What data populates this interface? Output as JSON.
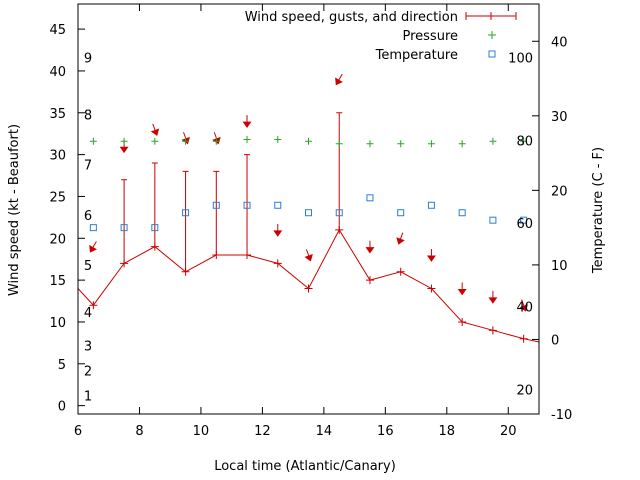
{
  "chart_data": {
    "type": "line",
    "xlabel": "Local time (Atlantic/Canary)",
    "ylabel": "Wind speed (kt - Beaufort)",
    "y2label": "Temperature (C - F)",
    "xlim": [
      6,
      21
    ],
    "ylim": [
      -1,
      48
    ],
    "y2lim": [
      -10,
      45
    ],
    "x_ticks": [
      6,
      8,
      10,
      12,
      14,
      16,
      18,
      20
    ],
    "y_ticks": [
      0,
      5,
      10,
      15,
      20,
      25,
      30,
      35,
      40,
      45
    ],
    "y2_ticks": [
      -10,
      0,
      10,
      20,
      30,
      40
    ],
    "beaufort_labels": [
      {
        "label": "1",
        "y": 1.2
      },
      {
        "label": "2",
        "y": 4.2
      },
      {
        "label": "3",
        "y": 7.2
      },
      {
        "label": "4",
        "y": 11.2
      },
      {
        "label": "5",
        "y": 16.8
      },
      {
        "label": "6",
        "y": 22.8
      },
      {
        "label": "7",
        "y": 28.8
      },
      {
        "label": "8",
        "y": 34.8
      },
      {
        "label": "9",
        "y": 41.6
      }
    ],
    "fahrenheit_labels": [
      {
        "label": "20",
        "temp": -6.7
      },
      {
        "label": "40",
        "temp": 4.4
      },
      {
        "label": "60",
        "temp": 15.6
      },
      {
        "label": "80",
        "temp": 26.7
      },
      {
        "label": "100",
        "temp": 37.8
      }
    ],
    "series": [
      {
        "name": "Wind speed, gusts, and direction",
        "color": "#cc0000",
        "x": [
          6.0,
          6.5,
          7.5,
          8.5,
          9.5,
          10.5,
          11.5,
          12.5,
          13.5,
          14.5,
          15.5,
          16.5,
          17.5,
          18.5,
          19.5,
          20.5,
          21.0
        ],
        "values": [
          14,
          12,
          17,
          19,
          16,
          18,
          18,
          17,
          14,
          21,
          15,
          16,
          14,
          10,
          9,
          8,
          7.6
        ],
        "gust_x": [
          7.5,
          8.5,
          9.5,
          10.5,
          11.5,
          14.5
        ],
        "gusts": [
          27,
          29,
          28,
          28,
          30,
          35
        ],
        "direction_points": [
          {
            "x": 6.5,
            "y": 19,
            "from": 30
          },
          {
            "x": 7.5,
            "y": 31,
            "from": 0
          },
          {
            "x": 8.5,
            "y": 33,
            "from": 340
          },
          {
            "x": 9.5,
            "y": 32,
            "from": 340
          },
          {
            "x": 10.5,
            "y": 32,
            "from": 340
          },
          {
            "x": 11.5,
            "y": 34,
            "from": 0
          },
          {
            "x": 12.5,
            "y": 21,
            "from": 0
          },
          {
            "x": 13.5,
            "y": 18,
            "from": 340
          },
          {
            "x": 14.5,
            "y": 39,
            "from": 30
          },
          {
            "x": 15.5,
            "y": 19,
            "from": 0
          },
          {
            "x": 16.5,
            "y": 20,
            "from": 20
          },
          {
            "x": 17.5,
            "y": 18,
            "from": 0
          },
          {
            "x": 18.5,
            "y": 14,
            "from": 0
          },
          {
            "x": 19.5,
            "y": 13,
            "from": 0
          },
          {
            "x": 20.5,
            "y": 12,
            "from": 340
          }
        ]
      },
      {
        "name": "Pressure",
        "color": "#22aa22",
        "x": [
          6.5,
          7.5,
          8.5,
          9.5,
          10.5,
          11.5,
          12.5,
          13.5,
          14.5,
          15.5,
          16.5,
          17.5,
          18.5,
          19.5,
          20.5
        ],
        "values": [
          31.6,
          31.6,
          31.6,
          31.6,
          31.6,
          31.8,
          31.8,
          31.6,
          31.3,
          31.3,
          31.3,
          31.3,
          31.3,
          31.6,
          31.6
        ]
      },
      {
        "name": "Temperature",
        "color": "#2a7fd4",
        "axis": "y2",
        "x": [
          6.5,
          7.5,
          8.5,
          9.5,
          10.5,
          11.5,
          12.5,
          13.5,
          14.5,
          15.5,
          16.5,
          17.5,
          18.5,
          19.5,
          20.5
        ],
        "values": [
          15,
          15,
          15,
          17,
          18,
          18,
          18,
          17,
          17,
          19,
          17,
          18,
          17,
          16,
          16
        ]
      }
    ]
  }
}
